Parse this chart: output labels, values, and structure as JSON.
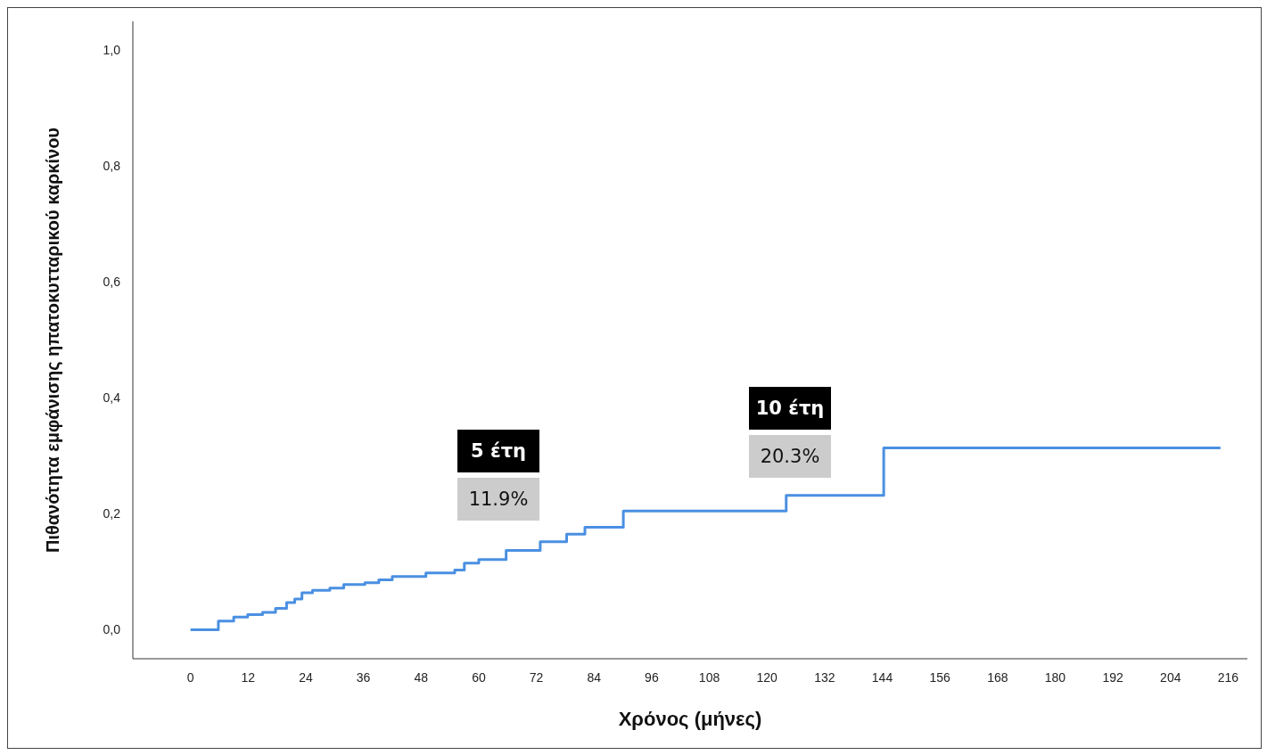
{
  "chart_data": {
    "type": "step",
    "xlabel": "Χρόνος (μήνες)",
    "ylabel": "Πιθανότητα εμφάνισης ηπατοκυτταρικού καρκίνου",
    "x": [
      0,
      5.8,
      9,
      11.9,
      15,
      17.7,
      20,
      21.7,
      23.2,
      25.4,
      29,
      31.9,
      36.3,
      39.2,
      42,
      49,
      55,
      57,
      60,
      65.7,
      72.8,
      78.3,
      82.1,
      90.1,
      124,
      144.3,
      214.4
    ],
    "series": [
      {
        "color": "#4a90e2",
        "values": [
          0,
          0.015,
          0.022,
          0.026,
          0.03,
          0.037,
          0.047,
          0.053,
          0.064,
          0.068,
          0.072,
          0.078,
          0.081,
          0.086,
          0.092,
          0.098,
          0.103,
          0.115,
          0.121,
          0.137,
          0.152,
          0.165,
          0.177,
          0.205,
          0.232,
          0.314,
          0.314
        ]
      }
    ],
    "xlim": [
      -12,
      220
    ],
    "xticks": [
      0,
      12,
      24,
      36,
      48,
      60,
      72,
      84,
      96,
      108,
      120,
      132,
      144,
      156,
      168,
      180,
      192,
      204,
      216
    ],
    "ylim": [
      -0.05,
      1.05
    ],
    "yticks": [
      {
        "value": 0,
        "label": "0,0"
      },
      {
        "value": 0.2,
        "label": "0,2"
      },
      {
        "value": 0.4,
        "label": "0,4"
      },
      {
        "value": 0.6,
        "label": "0,6"
      },
      {
        "value": 0.8,
        "label": "0,8"
      },
      {
        "value": 1,
        "label": "1,0"
      }
    ],
    "grid": false,
    "legend": false,
    "marker": "none",
    "line_style": "solid",
    "annotations": [
      "5 έτη",
      "11.9%",
      "10 έτη",
      "20.3%"
    ]
  }
}
